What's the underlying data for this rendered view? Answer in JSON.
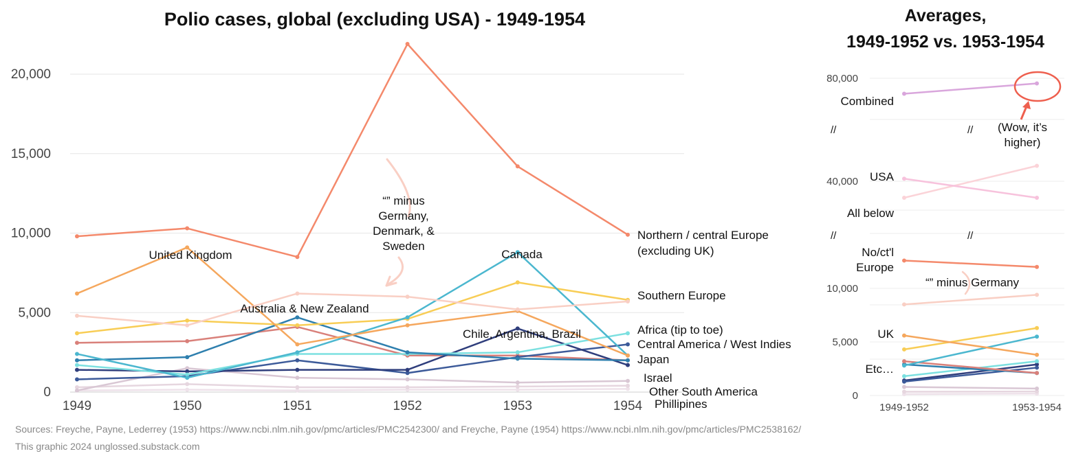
{
  "chart_data": [
    {
      "type": "line",
      "title": "Polio cases, global (excluding USA) - 1949-1954",
      "xlabel": "",
      "ylabel": "",
      "x": [
        "1949",
        "1950",
        "1951",
        "1952",
        "1953",
        "1954"
      ],
      "ylim": [
        0,
        22000
      ],
      "yticks": [
        0,
        5000,
        10000,
        15000,
        20000
      ],
      "ytick_labels": [
        "0",
        "5,000",
        "10,000",
        "15,000",
        "20,000"
      ],
      "grid": true,
      "legend": "none (direct labels)",
      "series": [
        {
          "name": "Northern / central Europe (excluding UK)",
          "color": "#f4896b",
          "values": [
            9800,
            10300,
            8500,
            21900,
            14200,
            9900
          ]
        },
        {
          "name": "“” minus Germany, Denmark, & Sweden",
          "color": "#f9cfc4",
          "values": [
            4800,
            4200,
            6200,
            6000,
            5200,
            5700
          ]
        },
        {
          "name": "United Kingdom",
          "color": "#f5a75d",
          "values": [
            6200,
            9100,
            3000,
            4200,
            5100,
            2300
          ]
        },
        {
          "name": "Canada",
          "color": "#4bb7cf",
          "values": [
            2400,
            900,
            2500,
            4700,
            8800,
            2300
          ]
        },
        {
          "name": "Southern Europe",
          "color": "#f8cd55",
          "values": [
            3700,
            4500,
            4200,
            4600,
            6900,
            5800
          ]
        },
        {
          "name": "Australia & New Zealand",
          "color": "#2e7fae",
          "values": [
            2000,
            2200,
            4700,
            2500,
            2100,
            2000
          ]
        },
        {
          "name": "Africa (tip to toe)",
          "color": "#7ce0e0",
          "values": [
            1700,
            1100,
            2400,
            2400,
            2500,
            3700
          ]
        },
        {
          "name": "Chile, Argentina, Brazil",
          "color": "#2f3e7c",
          "values": [
            1400,
            1300,
            1400,
            1400,
            4000,
            1700
          ]
        },
        {
          "name": "Central America / West Indies",
          "color": "#3c5a99",
          "values": [
            800,
            1000,
            2000,
            1200,
            2200,
            3000
          ]
        },
        {
          "name": "Japan",
          "color": "#d9807a",
          "values": [
            3100,
            3200,
            4100,
            2300,
            2300,
            2000
          ]
        },
        {
          "name": "Israel",
          "color": "#d9c7d4",
          "values": [
            100,
            1500,
            900,
            800,
            600,
            700
          ]
        },
        {
          "name": "Other South America",
          "color": "#e6d6df",
          "values": [
            300,
            500,
            300,
            300,
            350,
            400
          ]
        },
        {
          "name": "Phillipines",
          "color": "#eee2ea",
          "values": [
            100,
            150,
            100,
            150,
            150,
            200
          ]
        }
      ]
    },
    {
      "type": "line",
      "title": "Averages, 1949-1952 vs. 1953-1954",
      "title_lines": [
        "Averages,",
        "1949-1952 vs. 1953-1954"
      ],
      "xlabel": "",
      "ylabel": "",
      "categories": [
        "1949-1952",
        "1953-1954"
      ],
      "broken_axis": true,
      "ytick_labels": [
        "0",
        "5,000",
        "10,000",
        "40,000",
        "80,000"
      ],
      "break_marks": [
        "//",
        "//"
      ],
      "annotation": "(Wow, it’s higher)",
      "annotation_lines": [
        "(Wow, it’s",
        "higher)"
      ],
      "series": [
        {
          "name": "Combined",
          "color": "#d9a6dc",
          "values": [
            74000,
            78000
          ]
        },
        {
          "name": "USA",
          "color": "#f7c2dc",
          "values": [
            41000,
            34000
          ]
        },
        {
          "name": "All below",
          "color": "#fbd3d8",
          "values": [
            34000,
            46000
          ]
        },
        {
          "name": "No/ct'l Europe",
          "color": "#f4896b",
          "values": [
            12600,
            12000
          ]
        },
        {
          "name": "“” minus Germany",
          "color": "#f9cfc4",
          "values": [
            8500,
            9400
          ]
        },
        {
          "name": "UK",
          "color": "#f5a75d",
          "values": [
            5600,
            3800
          ]
        },
        {
          "name": "Southern Europe",
          "color": "#f8cd55",
          "values": [
            4300,
            6300
          ]
        },
        {
          "name": "Canada",
          "color": "#4bb7cf",
          "values": [
            2800,
            5500
          ]
        },
        {
          "name": "Japan",
          "color": "#d9807a",
          "values": [
            3200,
            2100
          ]
        },
        {
          "name": "Australia & New Zealand",
          "color": "#2e7fae",
          "values": [
            2900,
            2100
          ]
        },
        {
          "name": "Africa",
          "color": "#7ce0e0",
          "values": [
            1800,
            3200
          ]
        },
        {
          "name": "Central America / West Indies",
          "color": "#3c5a99",
          "values": [
            1300,
            2600
          ]
        },
        {
          "name": "Chile, Argentina, Brazil",
          "color": "#2f3e7c",
          "values": [
            1400,
            2900
          ]
        },
        {
          "name": "Israel",
          "color": "#d9c7d4",
          "values": [
            800,
            650
          ]
        },
        {
          "name": "Other South America",
          "color": "#e6d6df",
          "values": [
            350,
            380
          ]
        },
        {
          "name": "Phillipines",
          "color": "#eee2ea",
          "values": [
            130,
            180
          ]
        }
      ],
      "side_labels": {
        "combined": "Combined",
        "usa": "USA",
        "all_below": "All below",
        "nocentral_lines": [
          "No/ct'l",
          "Europe"
        ],
        "minus_germany": "“” minus Germany",
        "uk": "UK",
        "etc": "Etc…"
      }
    }
  ],
  "main_labels": {
    "north": [
      "Northern / central Europe",
      "(excluding UK)"
    ],
    "minus": [
      "“” minus",
      "Germany,",
      "Denmark, &",
      "Sweden"
    ],
    "uk": "United Kingdom",
    "canada": "Canada",
    "southern": "Southern Europe",
    "aus": "Australia & New Zealand",
    "chile": "Chile, Argentina, Brazil",
    "africa": "Africa (tip to toe)",
    "central": "Central America / West Indies",
    "japan": "Japan",
    "israel": "Israel",
    "other_sa": "Other South America",
    "phil": "Phillipines"
  },
  "footer": {
    "sources": "Sources: Freyche, Payne, Lederrey (1953) https://www.ncbi.nlm.nih.gov/pmc/articles/PMC2542300/ and Freyche, Payne (1954) https://www.ncbi.nlm.nih.gov/pmc/articles/PMC2538162/",
    "credit": "This graphic 2024 unglossed.substack.com"
  }
}
